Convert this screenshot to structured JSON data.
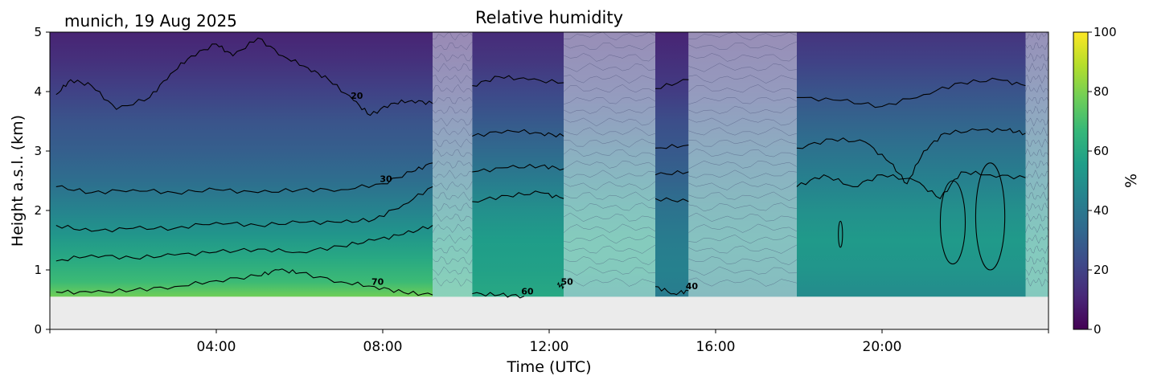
{
  "chart_data": {
    "type": "heatmap",
    "title": "Relative humidity",
    "subtitle": "munich, 19 Aug 2025",
    "xlabel": "Time (UTC)",
    "ylabel": "Height a.s.l. (km)",
    "xlim_hours": [
      0,
      24
    ],
    "ylim_km": [
      0,
      5
    ],
    "x_tick_labels": [
      "04:00",
      "08:00",
      "12:00",
      "16:00",
      "20:00"
    ],
    "x_tick_hours": [
      4,
      8,
      12,
      16,
      20
    ],
    "y_ticks": [
      0,
      1,
      2,
      3,
      4,
      5
    ],
    "colorbar": {
      "label": "%",
      "range": [
        0,
        100
      ],
      "ticks": [
        0,
        20,
        40,
        60,
        80,
        100
      ],
      "colormap": [
        "#440154",
        "#482878",
        "#3e4989",
        "#31688e",
        "#26828e",
        "#1f9e89",
        "#35b779",
        "#6ece58",
        "#b5de2b",
        "#fde725"
      ]
    },
    "data_bottom_km": 0.55,
    "segments": [
      {
        "start": 0.0,
        "end": 9.2,
        "hatched": false,
        "rh_profile": [
          [
            0.55,
            78
          ],
          [
            0.8,
            68
          ],
          [
            1.2,
            60
          ],
          [
            1.6,
            52
          ],
          [
            2.0,
            45
          ],
          [
            2.5,
            36
          ],
          [
            3.0,
            30
          ],
          [
            3.5,
            26
          ],
          [
            4.0,
            20
          ],
          [
            4.5,
            14
          ],
          [
            5.0,
            10
          ]
        ]
      },
      {
        "start": 9.2,
        "end": 10.15,
        "hatched": true,
        "rh_profile": [
          [
            0.55,
            62
          ],
          [
            1.0,
            58
          ],
          [
            1.5,
            55
          ],
          [
            2.0,
            48
          ],
          [
            2.5,
            40
          ],
          [
            3.0,
            32
          ],
          [
            3.5,
            26
          ],
          [
            4.0,
            20
          ],
          [
            5.0,
            12
          ]
        ]
      },
      {
        "start": 10.15,
        "end": 12.35,
        "hatched": false,
        "rh_profile": [
          [
            0.55,
            60
          ],
          [
            1.0,
            57
          ],
          [
            1.5,
            55
          ],
          [
            2.0,
            50
          ],
          [
            2.5,
            42
          ],
          [
            3.0,
            34
          ],
          [
            3.5,
            28
          ],
          [
            4.0,
            22
          ],
          [
            4.5,
            16
          ],
          [
            5.0,
            12
          ]
        ]
      },
      {
        "start": 12.35,
        "end": 14.55,
        "hatched": true,
        "rh_profile": [
          [
            0.55,
            52
          ],
          [
            1.0,
            56
          ],
          [
            1.5,
            57
          ],
          [
            2.0,
            52
          ],
          [
            2.5,
            44
          ],
          [
            3.0,
            36
          ],
          [
            3.5,
            28
          ],
          [
            4.0,
            22
          ],
          [
            5.0,
            14
          ]
        ]
      },
      {
        "start": 14.55,
        "end": 15.35,
        "hatched": false,
        "rh_profile": [
          [
            0.55,
            42
          ],
          [
            1.0,
            44
          ],
          [
            1.5,
            42
          ],
          [
            2.0,
            38
          ],
          [
            2.5,
            32
          ],
          [
            3.0,
            28
          ],
          [
            3.5,
            24
          ],
          [
            4.0,
            18
          ],
          [
            5.0,
            10
          ]
        ]
      },
      {
        "start": 15.35,
        "end": 17.95,
        "hatched": true,
        "rh_profile": [
          [
            0.55,
            46
          ],
          [
            1.0,
            48
          ],
          [
            1.5,
            50
          ],
          [
            2.0,
            46
          ],
          [
            2.5,
            40
          ],
          [
            3.0,
            34
          ],
          [
            3.5,
            28
          ],
          [
            4.0,
            22
          ],
          [
            5.0,
            14
          ]
        ]
      },
      {
        "start": 17.95,
        "end": 23.45,
        "hatched": false,
        "rh_profile": [
          [
            0.55,
            48
          ],
          [
            1.0,
            52
          ],
          [
            1.5,
            54
          ],
          [
            2.0,
            50
          ],
          [
            2.5,
            44
          ],
          [
            3.0,
            38
          ],
          [
            3.5,
            32
          ],
          [
            4.0,
            26
          ],
          [
            4.5,
            20
          ],
          [
            5.0,
            15
          ]
        ]
      },
      {
        "start": 23.45,
        "end": 24.0,
        "hatched": true,
        "rh_profile": [
          [
            0.55,
            55
          ],
          [
            1.0,
            56
          ],
          [
            1.5,
            55
          ],
          [
            2.0,
            50
          ],
          [
            2.5,
            44
          ],
          [
            3.0,
            38
          ],
          [
            3.5,
            32
          ],
          [
            4.0,
            26
          ],
          [
            5.0,
            16
          ]
        ]
      }
    ],
    "contours": [
      {
        "label": "20",
        "points": [
          [
            0.15,
            3.95
          ],
          [
            0.5,
            4.2
          ],
          [
            1.0,
            4.1
          ],
          [
            1.6,
            3.7
          ],
          [
            2.4,
            3.9
          ],
          [
            2.9,
            4.3
          ],
          [
            3.4,
            4.6
          ],
          [
            4.0,
            4.8
          ],
          [
            4.4,
            4.6
          ],
          [
            5.0,
            4.9
          ],
          [
            5.6,
            4.6
          ],
          [
            6.2,
            4.4
          ],
          [
            6.7,
            4.2
          ],
          [
            7.3,
            3.85
          ],
          [
            7.7,
            3.6
          ],
          [
            8.2,
            3.8
          ],
          [
            8.7,
            3.85
          ],
          [
            9.2,
            3.8
          ]
        ]
      },
      {
        "label": "",
        "points": [
          [
            10.15,
            4.1
          ],
          [
            10.8,
            4.25
          ],
          [
            11.5,
            4.2
          ],
          [
            12.35,
            4.15
          ]
        ]
      },
      {
        "label": "",
        "points": [
          [
            14.55,
            4.05
          ],
          [
            15.35,
            4.2
          ]
        ]
      },
      {
        "label": "",
        "points": [
          [
            17.95,
            3.9
          ],
          [
            19.0,
            3.85
          ],
          [
            20.0,
            3.75
          ],
          [
            21.0,
            3.95
          ],
          [
            21.9,
            4.15
          ],
          [
            22.8,
            4.2
          ],
          [
            23.45,
            4.1
          ]
        ]
      },
      {
        "label": "30",
        "points": [
          [
            0.15,
            2.4
          ],
          [
            1.0,
            2.3
          ],
          [
            2.0,
            2.35
          ],
          [
            3.0,
            2.3
          ],
          [
            4.0,
            2.35
          ],
          [
            5.0,
            2.3
          ],
          [
            6.0,
            2.35
          ],
          [
            7.0,
            2.35
          ],
          [
            8.0,
            2.45
          ],
          [
            8.7,
            2.65
          ],
          [
            9.2,
            2.8
          ]
        ]
      },
      {
        "label": "",
        "points": [
          [
            10.15,
            3.25
          ],
          [
            11.0,
            3.35
          ],
          [
            11.8,
            3.3
          ],
          [
            12.35,
            3.25
          ]
        ]
      },
      {
        "label": "",
        "points": [
          [
            14.55,
            3.05
          ],
          [
            15.35,
            3.1
          ]
        ]
      },
      {
        "label": "",
        "points": [
          [
            17.95,
            3.05
          ],
          [
            18.8,
            3.2
          ],
          [
            19.6,
            3.15
          ],
          [
            20.2,
            2.8
          ],
          [
            20.6,
            2.45
          ],
          [
            21.0,
            3.0
          ],
          [
            21.5,
            3.3
          ],
          [
            22.3,
            3.35
          ],
          [
            23.0,
            3.35
          ],
          [
            23.45,
            3.3
          ]
        ]
      },
      {
        "label": "",
        "points": [
          [
            0.15,
            1.75
          ],
          [
            1.0,
            1.65
          ],
          [
            2.0,
            1.7
          ],
          [
            3.0,
            1.7
          ],
          [
            4.0,
            1.8
          ],
          [
            5.0,
            1.75
          ],
          [
            6.0,
            1.8
          ],
          [
            7.0,
            1.8
          ],
          [
            7.8,
            1.85
          ],
          [
            8.5,
            2.1
          ],
          [
            9.2,
            2.4
          ]
        ]
      },
      {
        "label": "",
        "points": [
          [
            10.15,
            2.65
          ],
          [
            11.0,
            2.72
          ],
          [
            11.8,
            2.75
          ],
          [
            12.35,
            2.7
          ]
        ]
      },
      {
        "label": "",
        "points": [
          [
            14.55,
            2.6
          ],
          [
            15.35,
            2.65
          ]
        ]
      },
      {
        "label": "",
        "points": [
          [
            17.95,
            2.4
          ],
          [
            18.6,
            2.6
          ],
          [
            19.3,
            2.4
          ],
          [
            20.0,
            2.6
          ],
          [
            20.8,
            2.5
          ],
          [
            21.4,
            2.2
          ],
          [
            21.9,
            2.65
          ],
          [
            22.6,
            2.6
          ],
          [
            23.45,
            2.55
          ]
        ]
      },
      {
        "label": "",
        "points": [
          [
            0.15,
            1.15
          ],
          [
            1.0,
            1.25
          ],
          [
            2.0,
            1.2
          ],
          [
            3.0,
            1.25
          ],
          [
            4.0,
            1.3
          ],
          [
            5.0,
            1.35
          ],
          [
            6.0,
            1.3
          ],
          [
            7.0,
            1.4
          ],
          [
            7.8,
            1.5
          ],
          [
            8.5,
            1.6
          ],
          [
            9.2,
            1.75
          ]
        ]
      },
      {
        "label": "",
        "points": [
          [
            10.15,
            2.15
          ],
          [
            11.0,
            2.25
          ],
          [
            11.8,
            2.3
          ],
          [
            12.35,
            2.2
          ]
        ]
      },
      {
        "label": "",
        "points": [
          [
            14.55,
            2.2
          ],
          [
            15.35,
            2.15
          ]
        ]
      },
      {
        "label": "70",
        "points": [
          [
            0.15,
            0.63
          ],
          [
            1.0,
            0.62
          ],
          [
            2.0,
            0.66
          ],
          [
            3.0,
            0.72
          ],
          [
            4.0,
            0.82
          ],
          [
            5.0,
            0.9
          ],
          [
            5.5,
            1.0
          ],
          [
            6.0,
            0.95
          ],
          [
            7.0,
            0.8
          ],
          [
            7.8,
            0.72
          ],
          [
            8.5,
            0.62
          ],
          [
            9.2,
            0.58
          ]
        ]
      },
      {
        "label": "60",
        "points": [
          [
            10.15,
            0.6
          ],
          [
            10.8,
            0.58
          ],
          [
            11.4,
            0.56
          ]
        ]
      },
      {
        "label": "50",
        "points": [
          [
            12.2,
            0.75
          ],
          [
            12.35,
            0.72
          ]
        ]
      },
      {
        "label": "40",
        "points": [
          [
            14.55,
            0.72
          ],
          [
            15.0,
            0.6
          ],
          [
            15.35,
            0.65
          ]
        ]
      }
    ],
    "closed_contours": [
      {
        "cx": 19.0,
        "cy": 1.6,
        "rx": 0.05,
        "ry": 0.22
      },
      {
        "cx": 21.7,
        "cy": 1.8,
        "rx": 0.3,
        "ry": 0.7
      },
      {
        "cx": 22.6,
        "cy": 1.9,
        "rx": 0.35,
        "ry": 0.9
      }
    ]
  }
}
